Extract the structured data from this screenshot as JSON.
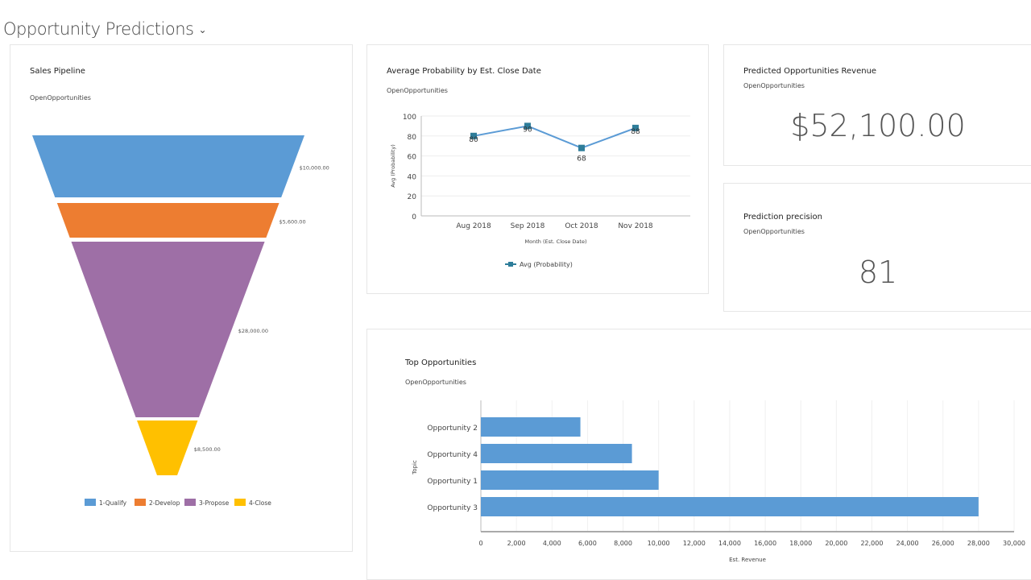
{
  "page": {
    "title": "Opportunity Predictions"
  },
  "funnel": {
    "title": "Sales Pipeline",
    "subtitle": "OpenOpportunities",
    "stages": [
      {
        "name": "1-Qualify",
        "value": 10000,
        "label": "$10,000.00",
        "color": "#5b9bd5"
      },
      {
        "name": "2-Develop",
        "value": 5600,
        "label": "$5,600.00",
        "color": "#ed7d31"
      },
      {
        "name": "3-Propose",
        "value": 28000,
        "label": "$28,000.00",
        "color": "#9e6fa6"
      },
      {
        "name": "4-Close",
        "value": 8500,
        "label": "$8,500.00",
        "color": "#ffc000"
      }
    ]
  },
  "revenue": {
    "title": "Predicted Opportunities Revenue",
    "subtitle": "OpenOpportunities",
    "value": "$52,100.00"
  },
  "precision": {
    "title": "Prediction precision",
    "subtitle": "OpenOpportunities",
    "value": "81"
  },
  "chart_data": [
    {
      "type": "line",
      "title": "Average Probability by Est. Close Date",
      "subtitle": "OpenOpportunities",
      "categories": [
        "Aug 2018",
        "Sep 2018",
        "Oct 2018",
        "Nov 2018"
      ],
      "series": [
        {
          "name": "Avg (Probability)",
          "values": [
            80,
            90,
            68,
            88
          ],
          "color": "#2e7d9a"
        }
      ],
      "xlabel": "Month (Est. Close Date)",
      "ylabel": "Avg (Probability)",
      "ylim": [
        0,
        100
      ],
      "yticks": [
        0,
        20,
        40,
        60,
        80,
        100
      ],
      "legend": "bottom"
    },
    {
      "type": "bar",
      "orientation": "horizontal",
      "title": "Top Opportunities",
      "subtitle": "OpenOpportunities",
      "categories": [
        "Opportunity 2",
        "Opportunity 4",
        "Opportunity 1",
        "Opportunity 3"
      ],
      "values": [
        5600,
        8500,
        10000,
        28000
      ],
      "color": "#5b9bd5",
      "xlabel": "Est. Revenue",
      "ylabel": "Topic",
      "xlim": [
        0,
        30000
      ],
      "xticks": [
        "0",
        "2,000",
        "4,000",
        "6,000",
        "8,000",
        "10,000",
        "12,000",
        "14,000",
        "16,000",
        "18,000",
        "20,000",
        "22,000",
        "24,000",
        "26,000",
        "28,000",
        "30,000"
      ]
    }
  ]
}
